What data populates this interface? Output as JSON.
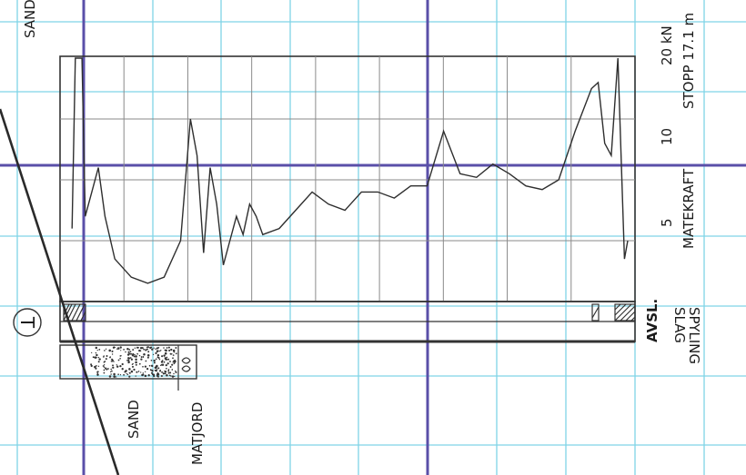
{
  "labels": {
    "sand_top": "SAND",
    "unit": "20 kN",
    "stop": "STOPP 17.1 m",
    "tick_10": "10",
    "tick_5": "5",
    "matekraft": "MATEKRAFT",
    "avsl": "AVSL.",
    "slag": "SLAG",
    "spyling": "SPYLING",
    "sand_sample": "SAND",
    "matjord": "MATJORD",
    "symbol": "T"
  },
  "colors": {
    "cyan_grid": "#7fd4e6",
    "purple_line": "#5a4fa8",
    "ink": "#222222",
    "trace": "#2e2e2e",
    "chart_grid": "#8a8a8a"
  },
  "trace": {
    "depth": [
      0.2,
      0.3,
      0.5,
      0.6,
      0.8,
      1.0,
      1.2,
      1.5,
      2.0,
      2.5,
      3.0,
      3.5,
      3.8,
      4.0,
      4.2,
      4.4,
      4.6,
      4.8,
      5.0,
      5.2,
      5.4,
      5.6,
      5.8,
      6.0,
      6.5,
      7.0,
      7.5,
      8.0,
      8.5,
      9.0,
      9.5,
      10.0,
      10.5,
      11.0,
      11.5,
      12.0,
      12.5,
      13.0,
      13.5,
      14.0,
      14.5,
      15.0,
      15.5,
      16.0,
      16.2,
      16.4,
      16.6,
      16.8,
      17.0,
      17.1
    ],
    "force": [
      6,
      20,
      20,
      7,
      9,
      11,
      7,
      3.5,
      2,
      1.5,
      2,
      5,
      15,
      12,
      4,
      11,
      8,
      3,
      5,
      7,
      5.5,
      8,
      7,
      5.5,
      6,
      7.5,
      9,
      8,
      7.5,
      9,
      9,
      8.5,
      9.5,
      9.5,
      14,
      10.5,
      10.2,
      11.3,
      10.5,
      9.5,
      9.2,
      10,
      14,
      17.5,
      18,
      13,
      12,
      20,
      3.5,
      5
    ]
  },
  "sample": {
    "from_depth": 0.4,
    "to_depth": 2.2
  }
}
